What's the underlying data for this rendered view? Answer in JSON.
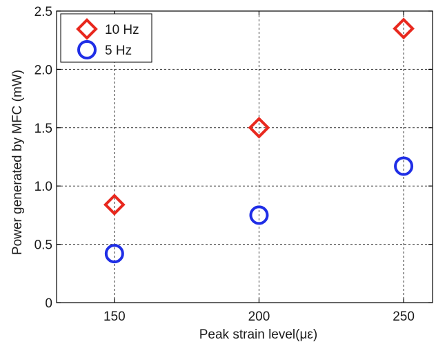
{
  "chart_data": {
    "type": "scatter",
    "xlabel": "Peak strain level(με)",
    "ylabel": "Power generated by MFC (mW)",
    "xlim": [
      130,
      260
    ],
    "ylim": [
      0,
      2.5
    ],
    "xticks": [
      150,
      200,
      250
    ],
    "xtick_labels": [
      "150",
      "200",
      "250"
    ],
    "yticks": [
      0,
      0.5,
      1.0,
      1.5,
      2.0,
      2.5
    ],
    "ytick_labels": [
      "0",
      "0.5",
      "1.0",
      "1.5",
      "2.0",
      "2.5"
    ],
    "grid": true,
    "legend_position": "top-left",
    "series": [
      {
        "name": "10 Hz",
        "marker": "diamond",
        "color": "#e8281e",
        "x": [
          150,
          200,
          250
        ],
        "y": [
          0.84,
          1.5,
          2.35
        ]
      },
      {
        "name": "5 Hz",
        "marker": "circle",
        "color": "#1f2ee6",
        "x": [
          150,
          200,
          250
        ],
        "y": [
          0.42,
          0.75,
          1.17
        ]
      }
    ]
  }
}
